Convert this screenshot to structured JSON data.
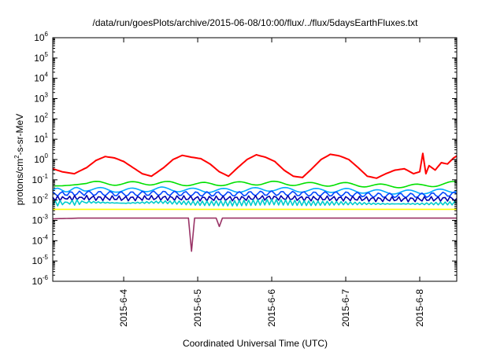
{
  "chart_data": {
    "type": "line",
    "title": "/data/run/goesPlots/archive/2015-06-08/10:00/flux/../flux/5daysEarthFluxes.txt",
    "xlabel": "Coordinated Universal Time (UTC)",
    "ylabel": {
      "pre": "protons/cm",
      "sup": "2",
      "post": "-s-sr-MeV"
    },
    "y_scale": "log",
    "ylim": [
      1e-06,
      1000000.0
    ],
    "y_ticks": [
      {
        "base": "10",
        "exp": "6",
        "value": 1000000.0
      },
      {
        "base": "10",
        "exp": "5",
        "value": 100000.0
      },
      {
        "base": "10",
        "exp": "4",
        "value": 10000.0
      },
      {
        "base": "10",
        "exp": "3",
        "value": 1000.0
      },
      {
        "base": "10",
        "exp": "2",
        "value": 100.0
      },
      {
        "base": "10",
        "exp": "1",
        "value": 10.0
      },
      {
        "base": "10",
        "exp": "0",
        "value": 1.0
      },
      {
        "base": "10",
        "exp": "-1",
        "value": 0.1
      },
      {
        "base": "10",
        "exp": "-2",
        "value": 0.01
      },
      {
        "base": "10",
        "exp": "-3",
        "value": 0.001
      },
      {
        "base": "10",
        "exp": "-4",
        "value": 0.0001
      },
      {
        "base": "10",
        "exp": "-5",
        "value": 1e-05
      },
      {
        "base": "10",
        "exp": "-6",
        "value": 1e-06
      }
    ],
    "xlim": [
      "2015-06-03T01:00",
      "2015-06-08T12:00"
    ],
    "x_ticks": [
      {
        "label": "2015-6-4",
        "date": "2015-06-04T00:00"
      },
      {
        "label": "2015-6-5",
        "date": "2015-06-05T00:00"
      },
      {
        "label": "2015-6-6",
        "date": "2015-06-06T00:00"
      },
      {
        "label": "2015-6-7",
        "date": "2015-06-07T00:00"
      },
      {
        "label": "2015-6-8",
        "date": "2015-06-08T00:00"
      }
    ],
    "grid": false,
    "legend": "none",
    "series": [
      {
        "color": "#ff0000",
        "points": [
          [
            "2015-06-03T01:00",
            0.35
          ],
          [
            "2015-06-03T04:00",
            0.25
          ],
          [
            "2015-06-03T08:00",
            0.2
          ],
          [
            "2015-06-03T12:00",
            0.4
          ],
          [
            "2015-06-03T15:00",
            0.9
          ],
          [
            "2015-06-03T18:00",
            1.4
          ],
          [
            "2015-06-03T21:00",
            1.2
          ],
          [
            "2015-06-04T00:00",
            0.8
          ],
          [
            "2015-06-04T03:00",
            0.4
          ],
          [
            "2015-06-04T06:00",
            0.2
          ],
          [
            "2015-06-04T09:00",
            0.15
          ],
          [
            "2015-06-04T13:00",
            0.4
          ],
          [
            "2015-06-04T16:00",
            1.0
          ],
          [
            "2015-06-04T19:00",
            1.6
          ],
          [
            "2015-06-04T22:00",
            1.3
          ],
          [
            "2015-06-05T01:00",
            1.1
          ],
          [
            "2015-06-05T04:00",
            0.6
          ],
          [
            "2015-06-05T07:00",
            0.25
          ],
          [
            "2015-06-05T10:00",
            0.15
          ],
          [
            "2015-06-05T13:00",
            0.4
          ],
          [
            "2015-06-05T16:00",
            1.0
          ],
          [
            "2015-06-05T19:00",
            1.7
          ],
          [
            "2015-06-05T22:00",
            1.3
          ],
          [
            "2015-06-06T01:00",
            0.8
          ],
          [
            "2015-06-06T04:00",
            0.3
          ],
          [
            "2015-06-06T07:00",
            0.15
          ],
          [
            "2015-06-06T10:00",
            0.13
          ],
          [
            "2015-06-06T13:00",
            0.35
          ],
          [
            "2015-06-06T16:00",
            1.0
          ],
          [
            "2015-06-06T19:00",
            1.8
          ],
          [
            "2015-06-06T22:00",
            1.5
          ],
          [
            "2015-06-07T01:00",
            1.0
          ],
          [
            "2015-06-07T04:00",
            0.4
          ],
          [
            "2015-06-07T07:00",
            0.15
          ],
          [
            "2015-06-07T10:00",
            0.12
          ],
          [
            "2015-06-07T13:00",
            0.2
          ],
          [
            "2015-06-07T16:00",
            0.3
          ],
          [
            "2015-06-07T19:00",
            0.35
          ],
          [
            "2015-06-07T22:00",
            0.2
          ],
          [
            "2015-06-08T00:00",
            0.25
          ],
          [
            "2015-06-08T01:00",
            2.0
          ],
          [
            "2015-06-08T02:00",
            0.2
          ],
          [
            "2015-06-08T03:00",
            0.5
          ],
          [
            "2015-06-08T05:00",
            0.3
          ],
          [
            "2015-06-08T07:00",
            0.7
          ],
          [
            "2015-06-08T09:00",
            0.6
          ],
          [
            "2015-06-08T11:00",
            1.2
          ],
          [
            "2015-06-08T12:00",
            1.5
          ]
        ]
      },
      {
        "color": "#00e000",
        "points": [
          [
            "2015-06-03T01:00",
            0.06
          ],
          [
            "2015-06-03T12:00",
            0.07
          ],
          [
            "2015-06-04T00:00",
            0.065
          ],
          [
            "2015-06-04T12:00",
            0.07
          ],
          [
            "2015-06-05T00:00",
            0.06
          ],
          [
            "2015-06-05T12:00",
            0.065
          ],
          [
            "2015-06-06T00:00",
            0.07
          ],
          [
            "2015-06-06T12:00",
            0.06
          ],
          [
            "2015-06-07T00:00",
            0.06
          ],
          [
            "2015-06-07T12:00",
            0.05
          ],
          [
            "2015-06-08T00:00",
            0.05
          ],
          [
            "2015-06-08T12:00",
            0.07
          ]
        ]
      },
      {
        "color": "#00aaff",
        "points": [
          [
            "2015-06-03T01:00",
            0.03
          ],
          [
            "2015-06-03T12:00",
            0.035
          ],
          [
            "2015-06-04T00:00",
            0.03
          ],
          [
            "2015-06-04T12:00",
            0.035
          ],
          [
            "2015-06-05T00:00",
            0.03
          ],
          [
            "2015-06-05T12:00",
            0.03
          ],
          [
            "2015-06-06T00:00",
            0.035
          ],
          [
            "2015-06-06T12:00",
            0.03
          ],
          [
            "2015-06-07T00:00",
            0.03
          ],
          [
            "2015-06-07T12:00",
            0.025
          ],
          [
            "2015-06-08T00:00",
            0.025
          ],
          [
            "2015-06-08T12:00",
            0.03
          ]
        ]
      },
      {
        "color": "#0044ff",
        "points": [
          [
            "2015-06-03T01:00",
            0.02
          ],
          [
            "2015-06-03T12:00",
            0.022
          ],
          [
            "2015-06-04T00:00",
            0.02
          ],
          [
            "2015-06-04T12:00",
            0.022
          ],
          [
            "2015-06-05T00:00",
            0.02
          ],
          [
            "2015-06-05T12:00",
            0.02
          ],
          [
            "2015-06-06T00:00",
            0.022
          ],
          [
            "2015-06-06T12:00",
            0.02
          ],
          [
            "2015-06-07T00:00",
            0.02
          ],
          [
            "2015-06-07T12:00",
            0.017
          ],
          [
            "2015-06-08T00:00",
            0.017
          ],
          [
            "2015-06-08T12:00",
            0.02
          ]
        ]
      },
      {
        "color": "#0000aa",
        "points": [
          [
            "2015-06-03T01:00",
            0.012
          ],
          [
            "2015-06-03T12:00",
            0.013
          ],
          [
            "2015-06-04T00:00",
            0.012
          ],
          [
            "2015-06-04T12:00",
            0.013
          ],
          [
            "2015-06-05T00:00",
            0.012
          ],
          [
            "2015-06-05T12:00",
            0.012
          ],
          [
            "2015-06-06T00:00",
            0.013
          ],
          [
            "2015-06-06T12:00",
            0.012
          ],
          [
            "2015-06-07T00:00",
            0.012
          ],
          [
            "2015-06-07T12:00",
            0.011
          ],
          [
            "2015-06-08T00:00",
            0.011
          ],
          [
            "2015-06-08T12:00",
            0.012
          ]
        ]
      },
      {
        "color": "#00cccc",
        "points": [
          [
            "2015-06-03T01:00",
            0.007
          ],
          [
            "2015-06-03T12:00",
            0.008
          ],
          [
            "2015-06-04T00:00",
            0.007
          ],
          [
            "2015-06-04T12:00",
            0.008
          ],
          [
            "2015-06-05T00:00",
            0.007
          ],
          [
            "2015-06-05T12:00",
            0.007
          ],
          [
            "2015-06-06T00:00",
            0.008
          ],
          [
            "2015-06-06T12:00",
            0.007
          ],
          [
            "2015-06-07T00:00",
            0.007
          ],
          [
            "2015-06-07T12:00",
            0.0065
          ],
          [
            "2015-06-08T00:00",
            0.0065
          ],
          [
            "2015-06-08T12:00",
            0.007
          ]
        ]
      },
      {
        "color": "#ffff00",
        "points": [
          [
            "2015-06-03T01:00",
            0.0035
          ],
          [
            "2015-06-04T00:00",
            0.0035
          ],
          [
            "2015-06-05T00:00",
            0.0035
          ],
          [
            "2015-06-06T00:00",
            0.0035
          ],
          [
            "2015-06-07T00:00",
            0.0035
          ],
          [
            "2015-06-08T00:00",
            0.0035
          ],
          [
            "2015-06-08T12:00",
            0.0035
          ]
        ]
      },
      {
        "color": "#993366",
        "points": [
          [
            "2015-06-03T01:00",
            0.0012
          ],
          [
            "2015-06-03T10:00",
            0.0013
          ],
          [
            "2015-06-04T00:00",
            0.0013
          ],
          [
            "2015-06-04T12:00",
            0.0013
          ],
          [
            "2015-06-04T21:00",
            0.0013
          ],
          [
            "2015-06-04T22:00",
            3e-05
          ],
          [
            "2015-06-04T23:00",
            0.0013
          ],
          [
            "2015-06-05T06:00",
            0.0013
          ],
          [
            "2015-06-05T07:00",
            0.0005
          ],
          [
            "2015-06-05T08:00",
            0.0013
          ],
          [
            "2015-06-06T00:00",
            0.0013
          ],
          [
            "2015-06-06T12:00",
            0.0013
          ],
          [
            "2015-06-07T00:00",
            0.0013
          ],
          [
            "2015-06-07T12:00",
            0.0013
          ],
          [
            "2015-06-08T00:00",
            0.0013
          ],
          [
            "2015-06-08T12:00",
            0.0013
          ]
        ]
      }
    ]
  }
}
